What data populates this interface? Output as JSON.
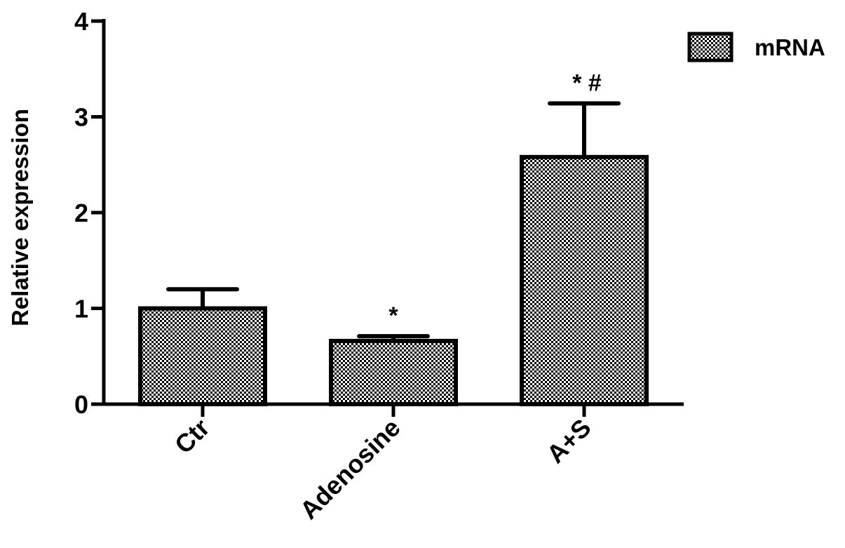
{
  "chart_data": {
    "type": "bar",
    "title": "",
    "xlabel": "",
    "ylabel": "Relative expression",
    "ylim": [
      0,
      4
    ],
    "yticks": [
      "0",
      "1",
      "2",
      "3",
      "4"
    ],
    "categories": [
      "Ctr",
      "Adenosine",
      "A+S"
    ],
    "series": [
      {
        "name": "mRNA",
        "values": [
          1.0,
          0.66,
          2.58
        ],
        "errors": [
          0.2,
          0.05,
          0.56
        ],
        "annotations": [
          "",
          "*",
          "* #"
        ]
      }
    ],
    "grid": false,
    "legend": "top-right",
    "colors": {
      "bar_fill": "#ffffff",
      "pattern": "#000000",
      "stroke": "#000000"
    }
  }
}
